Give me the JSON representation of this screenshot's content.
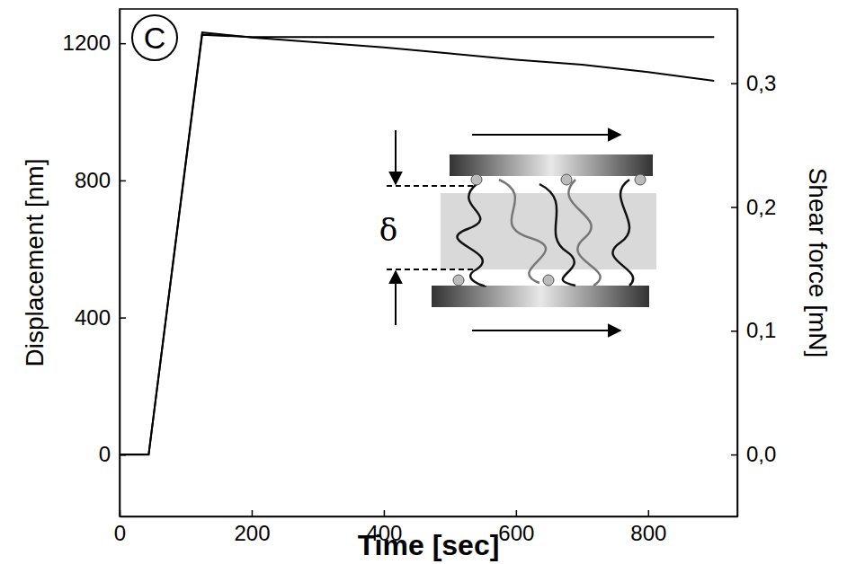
{
  "chart_data": {
    "type": "line",
    "x": [
      0,
      44,
      125,
      200,
      300,
      400,
      500,
      600,
      700,
      800,
      900
    ],
    "xlim": [
      0,
      935
    ],
    "xticks": [
      0,
      200,
      400,
      600,
      800
    ],
    "ylim": [
      -180,
      1300
    ],
    "yticks": [
      0,
      400,
      800,
      1200
    ],
    "y2lim": [
      -0.05,
      0.36
    ],
    "y2ticks": [
      {
        "value": 0,
        "label": "0,0"
      },
      {
        "value": 0.1,
        "label": "0,1"
      },
      {
        "value": 0.2,
        "label": "0,2"
      },
      {
        "value": 0.3,
        "label": "0,3"
      }
    ],
    "x_label": "Time [sec]",
    "y_label": "Displacement [nm]",
    "y2_label": "Shear force [mN]",
    "grid": false,
    "series": [
      {
        "color": "#000000",
        "line_style": "solid",
        "values": [
          0,
          0,
          1225,
          1218,
          1218,
          1218,
          1218,
          1218,
          1218,
          1218,
          1218
        ]
      },
      {
        "color": "#000000",
        "line_style": "solid",
        "axis": "y2",
        "values": [
          0,
          0,
          0.341,
          0.337,
          0.333,
          0.329,
          0.324,
          0.319,
          0.315,
          0.309,
          0.302
        ]
      }
    ],
    "annotations": [
      "C",
      "δ"
    ]
  }
}
